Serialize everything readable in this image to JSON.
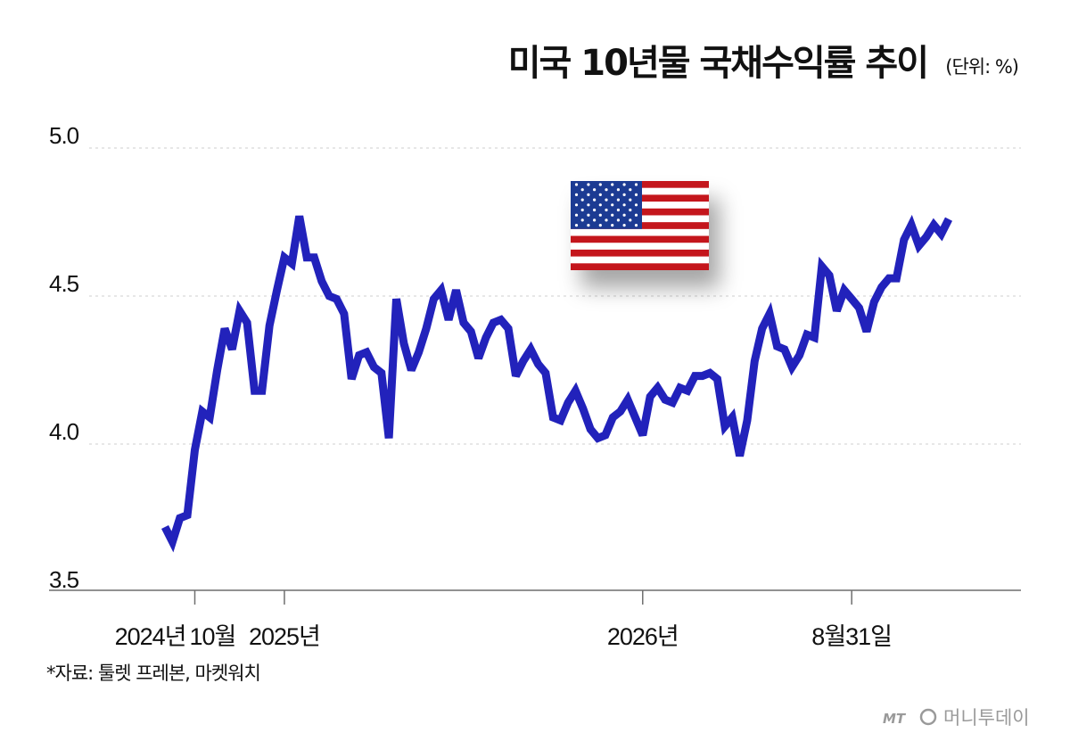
{
  "chart_data": {
    "type": "line",
    "title": "미국 10년물 국채수익률 추이",
    "unit": "(단위: %)",
    "ylim": [
      3.5,
      5.0
    ],
    "yticks": [
      "5.0",
      "4.5",
      "4.0",
      "3.5"
    ],
    "ytick_values": [
      5.0,
      4.5,
      4.0,
      3.5
    ],
    "grid": true,
    "x_labels": [
      {
        "text": "2024년",
        "index": 2,
        "tick": false
      },
      {
        "text": "10월",
        "index": 4,
        "tick": true
      },
      {
        "text": "2025년",
        "index": 16,
        "tick": true
      },
      {
        "text": "2026년",
        "index": 64,
        "tick": true
      },
      {
        "text": "8월31일",
        "index": 92,
        "tick": true
      }
    ],
    "series": [
      {
        "color": "#2222bb",
        "values": [
          3.72,
          3.67,
          3.75,
          3.76,
          3.98,
          4.11,
          4.09,
          4.25,
          4.39,
          4.32,
          4.45,
          4.41,
          4.18,
          4.18,
          4.4,
          4.52,
          4.63,
          4.61,
          4.77,
          4.63,
          4.63,
          4.55,
          4.5,
          4.49,
          4.44,
          4.22,
          4.3,
          4.31,
          4.26,
          4.24,
          4.02,
          4.49,
          4.34,
          4.25,
          4.31,
          4.39,
          4.49,
          4.52,
          4.42,
          4.52,
          4.41,
          4.38,
          4.29,
          4.36,
          4.41,
          4.42,
          4.39,
          4.23,
          4.28,
          4.32,
          4.27,
          4.24,
          4.09,
          4.08,
          4.14,
          4.18,
          4.12,
          4.05,
          4.02,
          4.03,
          4.09,
          4.11,
          4.15,
          4.09,
          4.03,
          4.16,
          4.19,
          4.15,
          4.14,
          4.19,
          4.18,
          4.23,
          4.23,
          4.24,
          4.22,
          4.06,
          4.09,
          3.96,
          4.08,
          4.28,
          4.39,
          4.44,
          4.33,
          4.32,
          4.26,
          4.3,
          4.37,
          4.36,
          4.6,
          4.57,
          4.45,
          4.52,
          4.49,
          4.46,
          4.38,
          4.48,
          4.53,
          4.56,
          4.56,
          4.69,
          4.74,
          4.67,
          4.7,
          4.74,
          4.71,
          4.76
        ]
      }
    ]
  },
  "source": "*자료: 툴렛 프레본, 마켓워치",
  "brand": {
    "mt": "MT",
    "name": "머니투데이"
  },
  "flag_icon": "us-flag-icon"
}
